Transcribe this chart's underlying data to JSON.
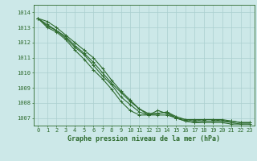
{
  "xlabel": "Graphe pression niveau de la mer (hPa)",
  "hours": [
    0,
    1,
    2,
    3,
    4,
    5,
    6,
    7,
    8,
    9,
    10,
    11,
    12,
    13,
    14,
    15,
    16,
    17,
    18,
    19,
    20,
    21,
    22,
    23
  ],
  "series": [
    [
      1013.6,
      1013.2,
      1012.8,
      1012.4,
      1011.8,
      1011.3,
      1010.7,
      1010.0,
      1009.3,
      1008.7,
      1008.1,
      1007.6,
      1007.3,
      1007.3,
      1007.4,
      1007.1,
      1006.9,
      1006.8,
      1006.9,
      1006.9,
      1006.9,
      1006.8,
      1006.7,
      1006.7
    ],
    [
      1013.6,
      1013.4,
      1013.0,
      1012.5,
      1012.0,
      1011.5,
      1011.0,
      1010.3,
      1009.5,
      1008.8,
      1008.2,
      1007.6,
      1007.2,
      1007.3,
      1007.4,
      1007.0,
      1006.8,
      1006.7,
      1006.8,
      1006.8,
      1006.8,
      1006.7,
      1006.6,
      1006.6
    ],
    [
      1013.6,
      1013.1,
      1012.8,
      1012.3,
      1011.7,
      1011.2,
      1010.5,
      1009.8,
      1009.2,
      1008.4,
      1007.9,
      1007.4,
      1007.2,
      1007.5,
      1007.3,
      1007.0,
      1006.9,
      1006.9,
      1006.9,
      1006.9,
      1006.8,
      1006.8,
      1006.7,
      1006.7
    ],
    [
      1013.6,
      1013.0,
      1012.7,
      1012.2,
      1011.5,
      1010.9,
      1010.2,
      1009.6,
      1008.9,
      1008.1,
      1007.5,
      1007.2,
      1007.2,
      1007.2,
      1007.2,
      1007.0,
      1006.8,
      1006.7,
      1006.7,
      1006.7,
      1006.7,
      1006.6,
      1006.6,
      1006.6
    ]
  ],
  "line_color": "#2d6a2d",
  "bg_color": "#cce8e8",
  "grid_color": "#aacfcf",
  "axis_color": "#2d6a2d",
  "ylim": [
    1006.5,
    1014.5
  ],
  "yticks": [
    1007,
    1008,
    1009,
    1010,
    1011,
    1012,
    1013,
    1014
  ],
  "tick_fontsize": 5.0,
  "xlabel_fontsize": 6.0
}
